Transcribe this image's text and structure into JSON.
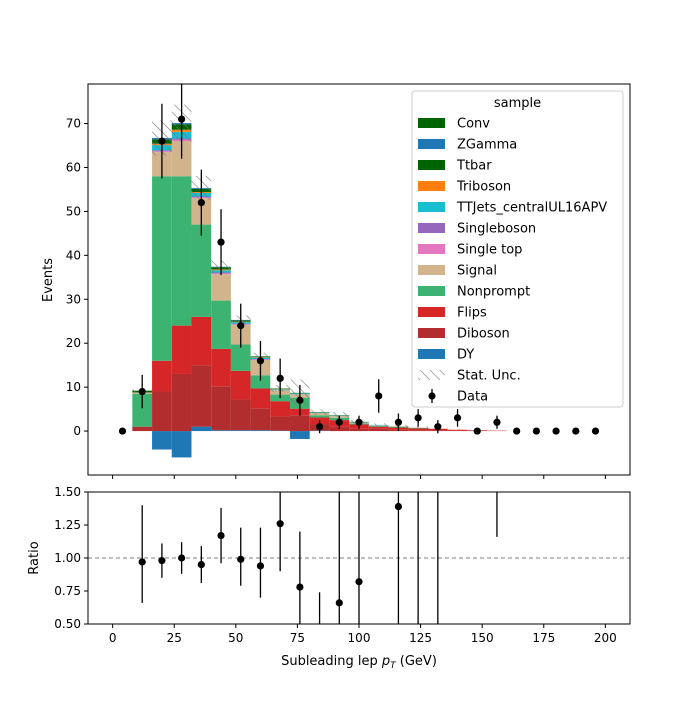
{
  "chart_data": [
    {
      "type": "bar",
      "stacked": true,
      "ylabel": "Events",
      "xlim": [
        -10,
        210
      ],
      "ylim": [
        -10,
        79
      ],
      "yticks": [
        "0",
        "10",
        "20",
        "30",
        "40",
        "50",
        "60",
        "70"
      ],
      "bin_edges": [
        8,
        16,
        24,
        32,
        40,
        48,
        56,
        64,
        72,
        80,
        88,
        96,
        104,
        112,
        120,
        128,
        136,
        144,
        152,
        160
      ],
      "legend_title": "sample",
      "legend_position": "top-right",
      "series": [
        {
          "name": "DY",
          "color": "#1f77b4",
          "values": [
            0,
            -4.2,
            -6,
            1,
            0.2,
            0.2,
            0.2,
            0.1,
            -1.8,
            0.1,
            0,
            0,
            0,
            0,
            0,
            0,
            0,
            0,
            0
          ]
        },
        {
          "name": "Diboson",
          "color": "#b22e2e",
          "values": [
            1,
            9,
            13,
            14,
            10,
            7,
            5,
            3.2,
            3.6,
            1.5,
            1,
            0.5,
            0.5,
            0.3,
            0.2,
            0.2,
            0.1,
            0.1,
            0
          ]
        },
        {
          "name": "Flips",
          "color": "#d62728",
          "values": [
            0,
            7,
            11,
            11,
            8.5,
            6.5,
            4.5,
            3.5,
            1.5,
            1.5,
            1.5,
            1,
            0.5,
            0.5,
            0.4,
            0.3,
            0.2,
            0.1,
            0.1
          ]
        },
        {
          "name": "Nonprompt",
          "color": "#3cb371",
          "values": [
            7.5,
            42,
            34,
            21,
            11,
            6,
            3,
            1.5,
            2.5,
            0.5,
            0.5,
            0.2,
            0.2,
            0.2,
            0.1,
            0,
            0,
            0,
            0
          ]
        },
        {
          "name": "Signal",
          "color": "#d2b48c",
          "values": [
            0.3,
            5.5,
            8,
            6,
            6,
            4.5,
            3.5,
            1,
            0.8,
            0.5,
            0.4,
            0.2,
            0.1,
            0.1,
            0.1,
            0.1,
            0,
            0,
            0
          ]
        },
        {
          "name": "Single top",
          "color": "#e377c2",
          "values": [
            0,
            0.2,
            0.3,
            0.2,
            0.2,
            0.1,
            0.1,
            0,
            0,
            0,
            0,
            0,
            0,
            0,
            0,
            0,
            0,
            0,
            0
          ]
        },
        {
          "name": "Singleboson",
          "color": "#9467bd",
          "values": [
            0,
            0.2,
            0.3,
            0.2,
            0.2,
            0.1,
            0.1,
            0,
            0,
            0,
            0,
            0,
            0,
            0,
            0,
            0,
            0,
            0,
            0
          ]
        },
        {
          "name": "TTJets_centralUL16APV",
          "color": "#17becf",
          "values": [
            0,
            1.2,
            1.5,
            0.8,
            0.5,
            0.4,
            0.3,
            0.2,
            0.2,
            0.1,
            0.1,
            0.1,
            0.1,
            0,
            0,
            0,
            0,
            0,
            0
          ]
        },
        {
          "name": "Triboson",
          "color": "#ff7f0e",
          "values": [
            0,
            0.3,
            0.5,
            0.2,
            0.2,
            0.1,
            0.1,
            0.1,
            0,
            0,
            0,
            0,
            0,
            0,
            0,
            0,
            0,
            0,
            0
          ]
        },
        {
          "name": "Ttbar",
          "color": "#006400",
          "values": [
            0.4,
            1,
            1.2,
            0.7,
            0.5,
            0.3,
            0.2,
            0.1,
            0.1,
            0.1,
            0.1,
            0.1,
            0,
            0,
            0,
            0,
            0,
            0,
            0
          ]
        },
        {
          "name": "ZGamma",
          "color": "#1f77b4",
          "values": [
            0,
            0.3,
            0.3,
            0.2,
            0.1,
            0.1,
            0,
            0,
            0,
            0,
            0,
            0,
            0,
            0,
            0,
            0,
            0,
            0,
            0
          ]
        },
        {
          "name": "Conv",
          "color": "#006400",
          "values": [
            0,
            0,
            0,
            0,
            0,
            0,
            0,
            0,
            0,
            0,
            0,
            0,
            0,
            0,
            0,
            0,
            0,
            0,
            0
          ]
        }
      ],
      "stat_unc": {
        "name": "Stat. Unc.",
        "color": "#888888",
        "rel_err": [
          0.04,
          0.06,
          0.06,
          0.05,
          0.04,
          0.04,
          0.05,
          0.08,
          0.35,
          0.15,
          0.2,
          0.2,
          0.25,
          0.3,
          0.3,
          0.3,
          0.4,
          0.5,
          0.5
        ]
      },
      "data": {
        "name": "Data",
        "color": "#000000",
        "x": [
          4,
          12,
          20,
          28,
          36,
          44,
          52,
          60,
          68,
          76,
          84,
          92,
          100,
          108,
          116,
          124,
          132,
          140,
          148,
          156,
          164,
          172,
          180,
          188,
          196
        ],
        "y": [
          0,
          9,
          66,
          71,
          52,
          43,
          24,
          16,
          12,
          7,
          1,
          2,
          2,
          8,
          2,
          3,
          1,
          3,
          0,
          2,
          0,
          0,
          0,
          0,
          0
        ],
        "err": [
          0,
          3.8,
          8.5,
          9,
          7.5,
          7.5,
          5,
          4.5,
          4.5,
          3.5,
          1.5,
          1.5,
          1.5,
          3.8,
          2,
          2,
          1.5,
          2,
          0,
          1.5,
          0,
          0,
          0,
          0,
          0
        ]
      }
    },
    {
      "type": "scatter",
      "ylabel": "Ratio",
      "xlabel": "Subleading lep $p_T$ (GeV)",
      "xlim": [
        -10,
        210
      ],
      "ylim": [
        0.5,
        1.5
      ],
      "xticks": [
        "0",
        "25",
        "50",
        "75",
        "100",
        "125",
        "150",
        "175",
        "200"
      ],
      "yticks": [
        "0.50",
        "0.75",
        "1.00",
        "1.25",
        "1.50"
      ],
      "reference_line": 1.0,
      "points": {
        "x": [
          12,
          20,
          28,
          36,
          44,
          52,
          60,
          68,
          76,
          92,
          100,
          116
        ],
        "y": [
          0.97,
          0.98,
          1.0,
          0.95,
          1.17,
          0.99,
          0.94,
          1.26,
          0.78,
          0.66,
          0.82,
          1.39
        ],
        "err_lo": [
          0.31,
          0.13,
          0.12,
          0.14,
          0.21,
          0.2,
          0.24,
          0.36,
          0.39,
          0.66,
          0.82,
          0.89
        ],
        "err_hi": [
          0.43,
          0.13,
          0.12,
          0.14,
          0.21,
          0.24,
          0.29,
          0.45,
          0.42,
          0.9,
          0.9,
          0.3
        ]
      },
      "bars_only": [
        {
          "x": 84,
          "lo": 0.5,
          "hi": 0.74
        },
        {
          "x": 124,
          "lo": 0.5,
          "hi": 1.5
        },
        {
          "x": 132,
          "lo": 0.5,
          "hi": 1.5
        },
        {
          "x": 156,
          "lo": 1.16,
          "hi": 1.5
        }
      ]
    }
  ]
}
